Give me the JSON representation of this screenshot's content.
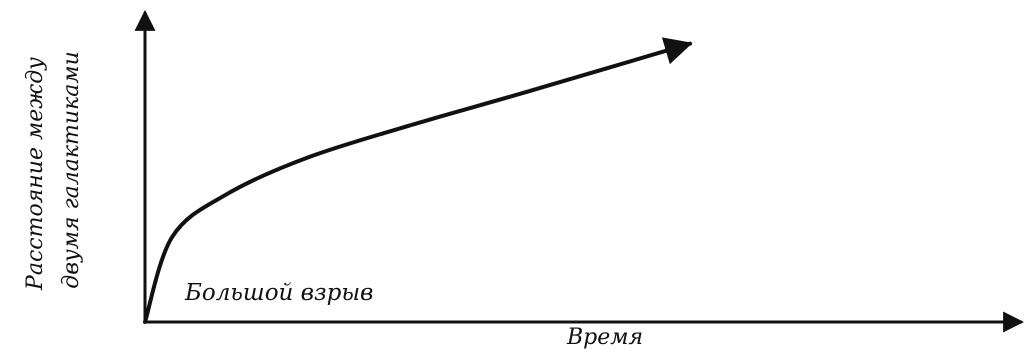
{
  "chart_data": {
    "type": "line",
    "title": "",
    "xlabel": "Время",
    "ylabel_line1": "Расстояние между",
    "ylabel_line2": "двумя галактиками",
    "annotation": "Большой взрыв",
    "xlim": [
      0,
      1
    ],
    "ylim": [
      0,
      1
    ],
    "series": [
      {
        "x": [
          0,
          0.05,
          0.15,
          0.3,
          0.5,
          0.7,
          1.0
        ],
        "y": [
          0,
          0.3,
          0.45,
          0.58,
          0.7,
          0.81,
          0.98
        ]
      }
    ],
    "grid": false,
    "legend": false,
    "color": "#111111"
  }
}
